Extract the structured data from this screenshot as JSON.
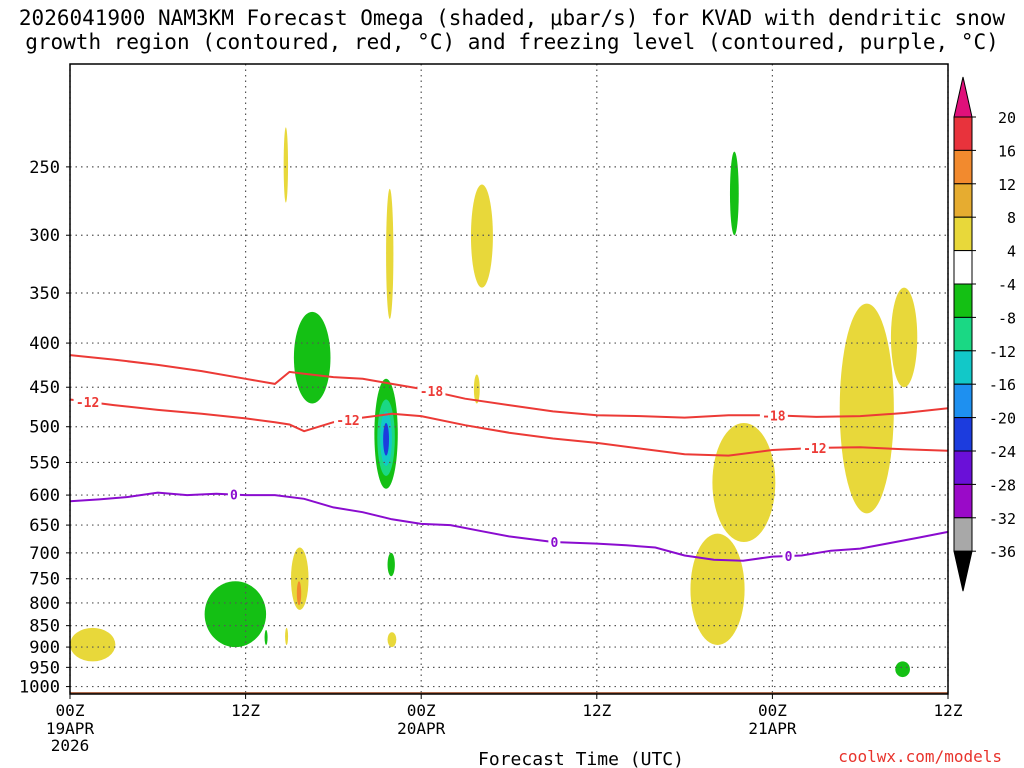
{
  "title_line1": "2026041900 NAM3KM Forecast Omega (shaded, μbar/s) for KVAD with dendritic snow",
  "title_line2": "growth region (contoured, red, °C) and freezing level (contoured, purple, °C)",
  "credit": "coolwx.com/models",
  "colors": {
    "dendritic_contour": "#ec3a36",
    "freezing_contour": "#8a0ccf",
    "terrain": "#a0522d",
    "grid": "#555555"
  },
  "chart_data": {
    "type": "heatmap",
    "xlabel": "Forecast Time (UTC)",
    "x_ticks": [
      {
        "hour": 0,
        "label": "00Z",
        "date": "19APR",
        "year": "2026"
      },
      {
        "hour": 12,
        "label": "12Z",
        "date": "",
        "year": ""
      },
      {
        "hour": 24,
        "label": "00Z",
        "date": "20APR",
        "year": ""
      },
      {
        "hour": 36,
        "label": "12Z",
        "date": "",
        "year": ""
      },
      {
        "hour": 48,
        "label": "00Z",
        "date": "21APR",
        "year": ""
      },
      {
        "hour": 60,
        "label": "12Z",
        "date": "",
        "year": ""
      }
    ],
    "xlim_hours": [
      0,
      60
    ],
    "y_ticks": [
      250,
      300,
      350,
      400,
      450,
      500,
      550,
      600,
      650,
      700,
      750,
      800,
      850,
      900,
      950,
      1000
    ],
    "ylim_hpa": [
      190,
      1020
    ],
    "y_scale": "log",
    "grid": true,
    "colorbar": {
      "levels": [
        20,
        16,
        12,
        8,
        4,
        -4,
        -8,
        -12,
        -16,
        -20,
        -24,
        -28,
        -32,
        -36
      ],
      "colors": [
        "#e8333c",
        "#f28a2e",
        "#e6ac30",
        "#e8d83a",
        "#ffffff",
        "#14c014",
        "#1ad884",
        "#12c8c8",
        "#1e90f0",
        "#1c3cde",
        "#6a10d8",
        "#9a0ac8",
        "#a8a8a8"
      ],
      "top_color": "#e0107a",
      "bottom_color": "#000000"
    },
    "omega_areas": [
      {
        "value": 4,
        "t0": 14.6,
        "t1": 14.9,
        "p0": 225,
        "p1": 275
      },
      {
        "value": 4,
        "t0": 21.6,
        "t1": 22.1,
        "p0": 265,
        "p1": 375
      },
      {
        "value": 4,
        "t0": 27.4,
        "t1": 28.9,
        "p0": 262,
        "p1": 345
      },
      {
        "value": 4,
        "t0": 27.6,
        "t1": 28.0,
        "p0": 435,
        "p1": 470
      },
      {
        "value": -8,
        "t0": 15.3,
        "t1": 17.8,
        "p0": 368,
        "p1": 470
      },
      {
        "value": -8,
        "t0": 20.8,
        "t1": 22.4,
        "p0": 440,
        "p1": 590
      },
      {
        "value": -12,
        "t0": 21.0,
        "t1": 22.2,
        "p0": 465,
        "p1": 570
      },
      {
        "value": -16,
        "t0": 21.2,
        "t1": 22.0,
        "p0": 480,
        "p1": 555
      },
      {
        "value": -24,
        "t0": 21.4,
        "t1": 21.8,
        "p0": 495,
        "p1": 540
      },
      {
        "value": -8,
        "t0": 21.7,
        "t1": 22.2,
        "p0": 700,
        "p1": 745
      },
      {
        "value": -8,
        "t0": 45.1,
        "t1": 45.7,
        "p0": 240,
        "p1": 300
      },
      {
        "value": 4,
        "t0": 15.1,
        "t1": 16.3,
        "p0": 690,
        "p1": 815
      },
      {
        "value": 12,
        "t0": 15.5,
        "t1": 15.8,
        "p0": 755,
        "p1": 805
      },
      {
        "value": 4,
        "t0": 21.7,
        "t1": 22.3,
        "p0": 865,
        "p1": 900
      },
      {
        "value": 4,
        "t0": 0.0,
        "t1": 3.1,
        "p0": 855,
        "p1": 935
      },
      {
        "value": -8,
        "t0": 9.2,
        "t1": 13.4,
        "p0": 755,
        "p1": 900
      },
      {
        "value": -8,
        "t0": 13.3,
        "t1": 13.5,
        "p0": 860,
        "p1": 895
      },
      {
        "value": 4,
        "t0": 14.7,
        "t1": 14.9,
        "p0": 855,
        "p1": 895
      },
      {
        "value": 4,
        "t0": 42.4,
        "t1": 46.1,
        "p0": 665,
        "p1": 895
      },
      {
        "value": 4,
        "t0": 43.9,
        "t1": 48.2,
        "p0": 495,
        "p1": 680
      },
      {
        "value": 4,
        "t0": 52.6,
        "t1": 56.3,
        "p0": 360,
        "p1": 630
      },
      {
        "value": 4,
        "t0": 56.1,
        "t1": 57.9,
        "p0": 345,
        "p1": 450
      },
      {
        "value": -8,
        "t0": 56.4,
        "t1": 57.4,
        "p0": 935,
        "p1": 975
      }
    ],
    "dendritic_minus12": {
      "label": "-12",
      "hours": [
        0,
        3,
        6,
        9,
        12,
        14,
        15,
        16,
        18,
        20,
        22,
        24,
        27,
        30,
        33,
        36,
        39,
        42,
        45,
        48,
        51,
        54,
        57,
        60
      ],
      "hpa": [
        465,
        472,
        478,
        483,
        489,
        494,
        497,
        506,
        494,
        488,
        483,
        486,
        498,
        508,
        516,
        522,
        530,
        538,
        540,
        532,
        529,
        528,
        531,
        533
      ]
    },
    "dendritic_minus18": {
      "label": "-18",
      "hours": [
        0,
        3,
        6,
        9,
        12,
        14,
        15,
        16,
        18,
        20,
        22,
        24,
        27,
        30,
        33,
        36,
        39,
        42,
        45,
        48,
        51,
        54,
        57,
        60
      ],
      "hpa": [
        413,
        418,
        424,
        431,
        440,
        446,
        432,
        434,
        438,
        440,
        446,
        452,
        464,
        472,
        480,
        485,
        486,
        488,
        485,
        485,
        487,
        486,
        482,
        476
      ]
    },
    "freezing_0": {
      "label": "0",
      "hours": [
        0,
        2,
        4,
        6,
        8,
        10,
        12,
        14,
        16,
        18,
        20,
        22,
        24,
        26,
        28,
        30,
        33,
        36,
        38,
        40,
        42,
        44,
        46,
        48,
        50,
        52,
        54,
        56,
        58,
        60
      ],
      "hpa": [
        610,
        607,
        603,
        596,
        600,
        598,
        600,
        600,
        606,
        620,
        628,
        640,
        648,
        650,
        660,
        670,
        680,
        683,
        686,
        690,
        705,
        713,
        715,
        707,
        705,
        696,
        692,
        682,
        672,
        662
      ]
    },
    "terrain_hpa": 1015
  }
}
